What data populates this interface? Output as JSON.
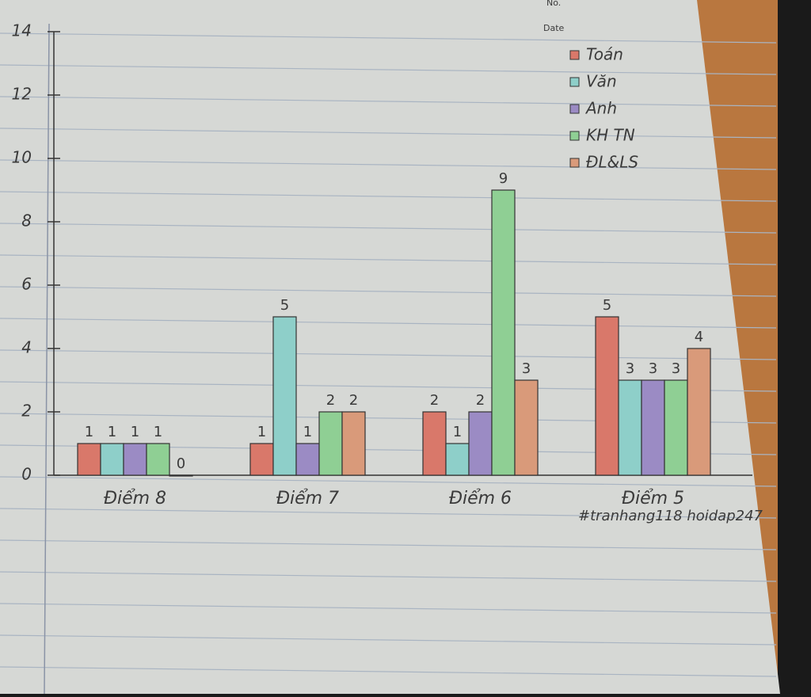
{
  "chart_data": {
    "type": "bar",
    "categories": [
      "Điểm 8",
      "Điểm 7",
      "Điểm 6",
      "Điểm 5"
    ],
    "series": [
      {
        "name": "Toán",
        "color": "#d9786a",
        "values": [
          1,
          1,
          2,
          5
        ]
      },
      {
        "name": "Văn",
        "color": "#8ecfc9",
        "values": [
          1,
          5,
          1,
          3
        ]
      },
      {
        "name": "Anh",
        "color": "#9b8bc4",
        "values": [
          1,
          1,
          2,
          3
        ]
      },
      {
        "name": "KH TN",
        "color": "#8fcf94",
        "values": [
          1,
          2,
          9,
          3
        ]
      },
      {
        "name": "ĐL&LS",
        "color": "#d99a7a",
        "values": [
          0,
          2,
          3,
          4
        ]
      }
    ],
    "ylim": [
      0,
      14
    ],
    "yticks": [
      0,
      2,
      4,
      6,
      8,
      10,
      12,
      14
    ],
    "grid": false,
    "legend": "top-right",
    "annotations": [
      "No.",
      "Date",
      "#tranhang118 hoidap247"
    ]
  }
}
